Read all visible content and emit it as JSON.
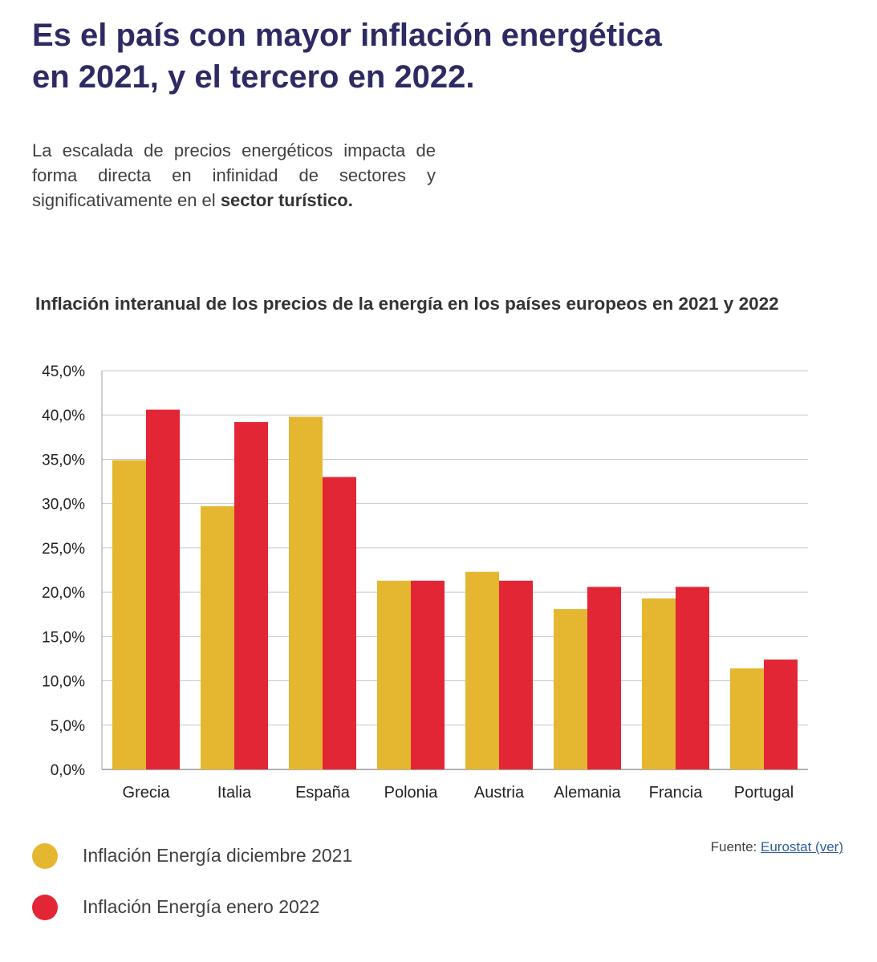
{
  "header": {
    "title_line1": "Es el país con mayor inflación energética",
    "title_line2": "en 2021, y el tercero en 2022."
  },
  "intro": {
    "text": "La escalada de precios energéticos impacta de forma directa en infinidad de sectores y significativamente en el",
    "bold": "sector turístico."
  },
  "chart_data": {
    "type": "bar",
    "title": "Inflación interanual de los precios de la energía en los países europeos en 2021 y 2022",
    "categories": [
      "Grecia",
      "Italia",
      "España",
      "Polonia",
      "Austria",
      "Alemania",
      "Francia",
      "Portugal"
    ],
    "series": [
      {
        "name": "Inflación Energía diciembre 2021",
        "color": "#e5b731",
        "values": [
          34.9,
          29.7,
          39.8,
          21.3,
          22.3,
          18.1,
          19.3,
          11.4
        ]
      },
      {
        "name": "Inflación Energía enero 2022",
        "color": "#e32636",
        "values": [
          40.6,
          39.2,
          33.0,
          21.3,
          21.3,
          20.6,
          20.6,
          12.4
        ]
      }
    ],
    "yticks": [
      "0,0%",
      "5,0%",
      "10,0%",
      "15,0%",
      "20,0%",
      "25,0%",
      "30,0%",
      "35,0%",
      "40,0%",
      "45,0%"
    ],
    "ylim": [
      0,
      45
    ],
    "grid": true,
    "legend_position": "bottom-left"
  },
  "source": {
    "label": "Fuente:",
    "link_text": "Eurostat (ver)"
  }
}
